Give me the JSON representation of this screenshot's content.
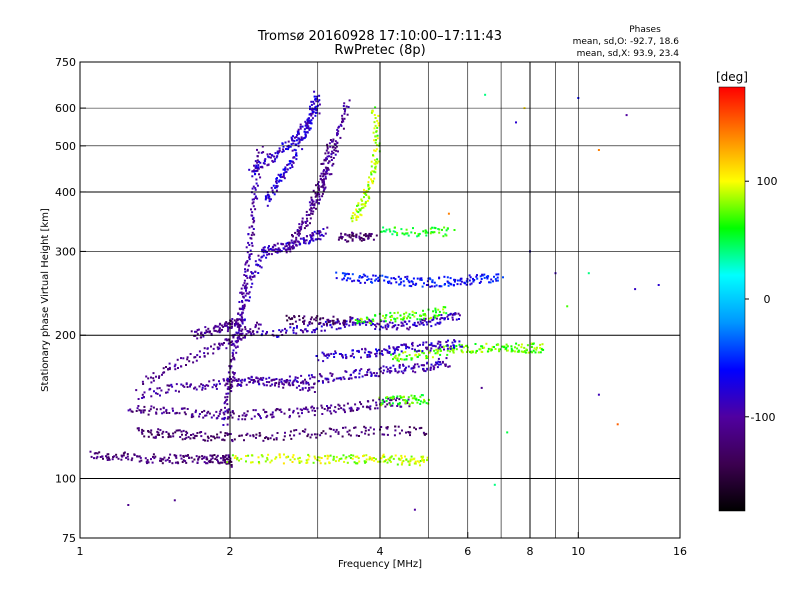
{
  "chart_data": {
    "type": "scatter",
    "title": "Tromsø 20160928 17:10:00–17:11:43",
    "subtitle": "RwPretec (8p)",
    "xlabel": "Frequency [MHz]",
    "ylabel": "Stationary phase Virtual Height [km]",
    "x_scale": "log",
    "y_scale": "log",
    "xlim": [
      1,
      16
    ],
    "ylim": [
      75,
      750
    ],
    "x_ticks": [
      1,
      2,
      4,
      6,
      8,
      10,
      16
    ],
    "y_ticks": [
      75,
      100,
      200,
      300,
      400,
      500,
      600,
      750
    ],
    "x_major_grid": [
      2,
      4,
      8
    ],
    "x_minor_grid": [
      3,
      5,
      6,
      7,
      9,
      10
    ],
    "y_major_grid": [
      100,
      200,
      400
    ],
    "y_minor_grid": [
      300,
      500,
      600
    ],
    "grid": true,
    "stats": {
      "heading": "Phases",
      "line_o": "mean, sd,O: -92.7, 18.6",
      "line_x": "mean, sd,X:  93.9, 23.4"
    },
    "colorbar": {
      "label": "[deg]",
      "range": [
        -180,
        180
      ],
      "ticks": [
        -100,
        0,
        100
      ],
      "colormap": [
        "#000000",
        "#3c0050",
        "#5000a0",
        "#0000ff",
        "#0096ff",
        "#00ffff",
        "#00ff00",
        "#ffff00",
        "#ff8000",
        "#ff0000"
      ]
    },
    "traces": [
      {
        "f": [
          1.05,
          1.2,
          1.4,
          1.6,
          1.8,
          1.95,
          2.0
        ],
        "h": [
          112,
          111,
          110,
          110,
          110,
          110,
          108
        ],
        "phase": -120
      },
      {
        "f": [
          2.0,
          2.5,
          3.0,
          3.5,
          4.0,
          4.5,
          5.0
        ],
        "h": [
          110,
          110,
          110,
          110,
          110,
          109,
          109
        ],
        "phase": 90
      },
      {
        "f": [
          1.25,
          1.5,
          1.8,
          2.1,
          2.5,
          3.0,
          3.5,
          4.0,
          4.6
        ],
        "h": [
          140,
          138,
          137,
          136,
          137,
          139,
          141,
          144,
          145
        ],
        "phase": -110
      },
      {
        "f": [
          1.3,
          1.5,
          1.7,
          2.0,
          2.5,
          3.2,
          4.0,
          5.0
        ],
        "h": [
          125,
          124,
          123,
          122,
          123,
          125,
          126,
          126
        ],
        "phase": -125
      },
      {
        "f": [
          1.3,
          1.6,
          1.9,
          2.2,
          2.6,
          3.0
        ],
        "h": [
          150,
          155,
          158,
          160,
          158,
          155
        ],
        "phase": -105
      },
      {
        "f": [
          4.0,
          4.5,
          5.0
        ],
        "h": [
          145,
          146,
          147
        ],
        "phase": 70
      },
      {
        "f": [
          2.0,
          2.5,
          3.0,
          3.5,
          4.0,
          4.5,
          5.0,
          5.5
        ],
        "h": [
          160,
          160,
          162,
          165,
          168,
          170,
          172,
          176
        ],
        "phase": -95
      },
      {
        "f": [
          4.2,
          4.8,
          5.5,
          6.2,
          7.0,
          7.8,
          8.5
        ],
        "h": [
          178,
          182,
          186,
          188,
          188,
          188,
          188
        ],
        "phase": 75
      },
      {
        "f": [
          3.0,
          3.5,
          4.0,
          4.5,
          5.2,
          5.8
        ],
        "h": [
          180,
          183,
          185,
          188,
          190,
          192
        ],
        "phase": -85
      },
      {
        "f": [
          1.35,
          1.6,
          1.9,
          2.1,
          2.3
        ],
        "h": [
          160,
          175,
          190,
          200,
          210
        ],
        "phase": -110
      },
      {
        "f": [
          2.3,
          2.8,
          3.2,
          3.6,
          4.0,
          4.6,
          5.2,
          5.8
        ],
        "h": [
          200,
          205,
          210,
          215,
          210,
          210,
          215,
          220
        ],
        "phase": -90
      },
      {
        "f": [
          3.6,
          4.2,
          4.8,
          5.5
        ],
        "h": [
          215,
          218,
          220,
          225
        ],
        "phase": 70
      },
      {
        "f": [
          2.6,
          3.0,
          3.5
        ],
        "h": [
          215,
          215,
          215
        ],
        "phase": -130
      },
      {
        "f": [
          3.3,
          3.8,
          4.4,
          5.0,
          5.6,
          6.2,
          7.0
        ],
        "h": [
          265,
          262,
          260,
          258,
          260,
          262,
          265
        ],
        "phase": -60
      },
      {
        "f": [
          4.0,
          4.8,
          5.6
        ],
        "h": [
          330,
          330,
          330
        ],
        "phase": 60
      },
      {
        "f": [
          3.3,
          3.6,
          3.9
        ],
        "h": [
          320,
          322,
          325
        ],
        "phase": -125
      },
      {
        "f": [
          2.1,
          2.2,
          2.35,
          2.5,
          2.7,
          2.9,
          3.1
        ],
        "h": [
          200,
          260,
          300,
          305,
          310,
          320,
          330
        ],
        "phase": -90
      },
      {
        "f": [
          1.95,
          2.0,
          2.05,
          2.1,
          2.15,
          2.2,
          2.25,
          2.3
        ],
        "h": [
          130,
          160,
          190,
          220,
          260,
          320,
          400,
          500
        ],
        "phase": -100
      },
      {
        "f": [
          2.35,
          2.5,
          2.65,
          2.8,
          2.9,
          3.0
        ],
        "h": [
          380,
          420,
          460,
          520,
          580,
          640
        ],
        "phase": -80
      },
      {
        "f": [
          2.6,
          2.75,
          2.9,
          3.0,
          3.1,
          3.2
        ],
        "h": [
          300,
          330,
          360,
          400,
          450,
          520
        ],
        "phase": -110
      },
      {
        "f": [
          3.0,
          3.15,
          3.3,
          3.45
        ],
        "h": [
          380,
          440,
          520,
          620
        ],
        "phase": -105
      },
      {
        "f": [
          3.55,
          3.7,
          3.85,
          3.95,
          3.9
        ],
        "h": [
          350,
          380,
          420,
          500,
          600
        ],
        "phase": 85
      },
      {
        "f": [
          2.2,
          2.4,
          2.6,
          2.8,
          3.0
        ],
        "h": [
          440,
          470,
          500,
          540,
          600
        ],
        "phase": -85
      },
      {
        "f": [
          1.7,
          1.85,
          2.0,
          2.1
        ],
        "h": [
          200,
          205,
          210,
          215
        ],
        "phase": -110
      }
    ],
    "scatter_points": [
      {
        "f": 12.5,
        "h": 580,
        "phase": -100
      },
      {
        "f": 10.0,
        "h": 630,
        "phase": -60
      },
      {
        "f": 7.5,
        "h": 560,
        "phase": -80
      },
      {
        "f": 11.0,
        "h": 490,
        "phase": 140
      },
      {
        "f": 6.5,
        "h": 640,
        "phase": 40
      },
      {
        "f": 7.8,
        "h": 600,
        "phase": 110
      },
      {
        "f": 6.4,
        "h": 155,
        "phase": -110
      },
      {
        "f": 7.2,
        "h": 125,
        "phase": 50
      },
      {
        "f": 11.0,
        "h": 150,
        "phase": -90
      },
      {
        "f": 12.0,
        "h": 130,
        "phase": 150
      },
      {
        "f": 6.8,
        "h": 97,
        "phase": 40
      },
      {
        "f": 4.7,
        "h": 86,
        "phase": -100
      },
      {
        "f": 1.25,
        "h": 88,
        "phase": -110
      },
      {
        "f": 1.55,
        "h": 90,
        "phase": -110
      },
      {
        "f": 1.0,
        "h": 100,
        "phase": 90
      },
      {
        "f": 14.5,
        "h": 255,
        "phase": -80
      },
      {
        "f": 9.0,
        "h": 270,
        "phase": -90
      },
      {
        "f": 9.5,
        "h": 230,
        "phase": 70
      },
      {
        "f": 8.0,
        "h": 300,
        "phase": -70
      },
      {
        "f": 5.5,
        "h": 360,
        "phase": 140
      },
      {
        "f": 10.5,
        "h": 270,
        "phase": 40
      },
      {
        "f": 13.0,
        "h": 250,
        "phase": -85
      }
    ]
  }
}
